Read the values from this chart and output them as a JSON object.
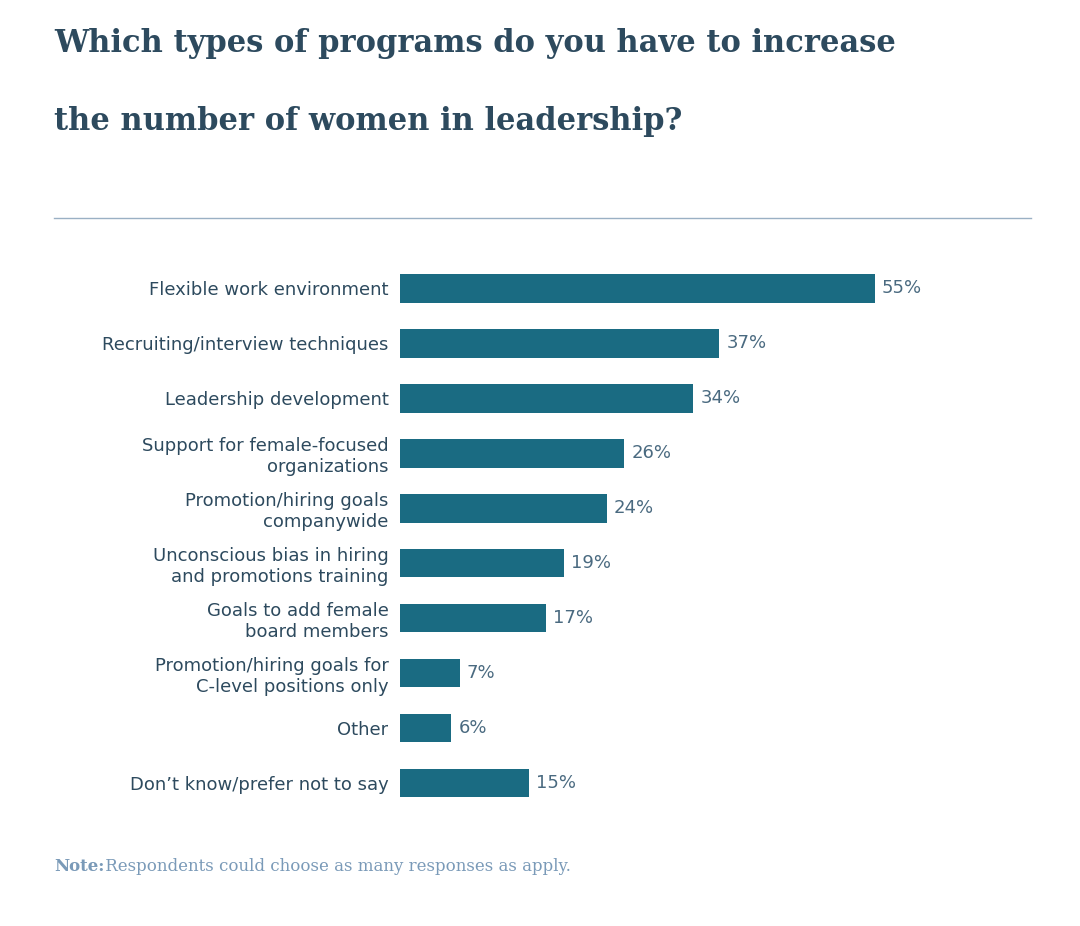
{
  "title_line1": "Which types of programs do you have to increase",
  "title_line2": "the number of women in leadership?",
  "title_color": "#2d4a5e",
  "title_fontsize": 22,
  "bar_color": "#1a6b82",
  "label_color": "#2d4a5e",
  "value_color": "#4a6a80",
  "note_bold": "Note:",
  "note_bold_color": "#7a9ab8",
  "note_text": " Respondents could choose as many responses as apply.",
  "note_color": "#7a9ab8",
  "note_fontsize": 12,
  "separator_color": "#9ab0c4",
  "categories": [
    "Flexible work environment",
    "Recruiting/interview techniques",
    "Leadership development",
    "Support for female-focused\norganizations",
    "Promotion/hiring goals\ncompanywide",
    "Unconscious bias in hiring\nand promotions training",
    "Goals to add female\nboard members",
    "Promotion/hiring goals for\nC-level positions only",
    "Other",
    "Don’t know/prefer not to say"
  ],
  "values": [
    55,
    37,
    34,
    26,
    24,
    19,
    17,
    7,
    6,
    15
  ],
  "label_fontsize": 13,
  "value_fontsize": 13,
  "background_color": "#ffffff"
}
